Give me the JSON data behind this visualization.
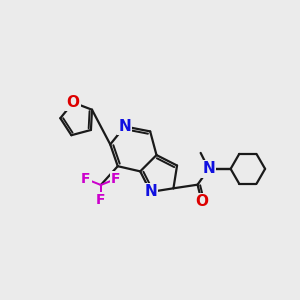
{
  "background_color": "#ebebeb",
  "bond_color": "#1a1a1a",
  "bond_width": 1.6,
  "atom_colors": {
    "N": "#1010e0",
    "O": "#dd0000",
    "F": "#cc00cc",
    "C": "#1a1a1a"
  },
  "figsize": [
    3.0,
    3.0
  ],
  "dpi": 100
}
